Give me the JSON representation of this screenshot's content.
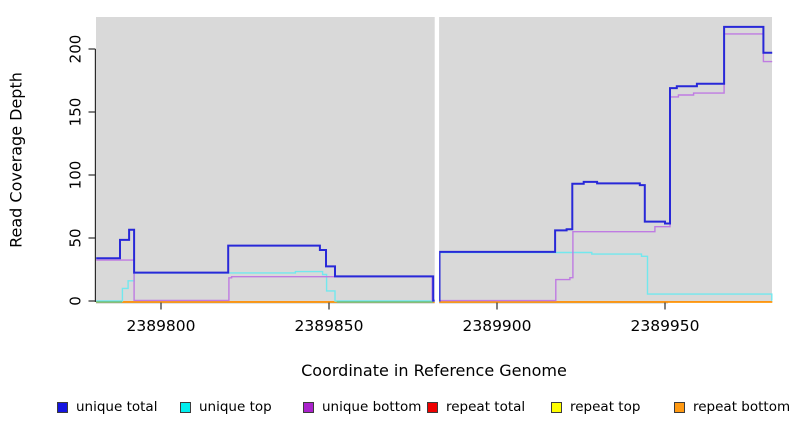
{
  "chart_data": {
    "type": "line",
    "subtype": "step-coverage-plot",
    "title": "",
    "xlabel": "Coordinate in Reference Genome",
    "ylabel": "Read Coverage Depth",
    "x_ticks": [
      2389800,
      2389850,
      2389900,
      2389950
    ],
    "y_ticks": [
      0,
      50,
      100,
      150,
      200
    ],
    "xlim": [
      2389780.7,
      2389981.9
    ],
    "ylim": [
      0,
      225
    ],
    "grid": false,
    "plot_background": "#d9d9d9",
    "figure_background": "#ffffff",
    "legend_position": "bottom",
    "no_data_gap": {
      "x_start": 2389881.45,
      "x_end": 2389882.75
    },
    "series": [
      {
        "name": "unique total",
        "color": "#2828d8",
        "width": 2,
        "points": [
          [
            2389780.7,
            34
          ],
          [
            2389787.8,
            48.5
          ],
          [
            2389790.5,
            56.5
          ],
          [
            2389792,
            22.5
          ],
          [
            2389820,
            44
          ],
          [
            2389847.3,
            40.5
          ],
          [
            2389849.1,
            27.5
          ],
          [
            2389851.8,
            19.5
          ],
          [
            2389881,
            0.3
          ],
          [
            2389882.9,
            39
          ],
          [
            2389917.3,
            56
          ],
          [
            2389920.7,
            57
          ],
          [
            2389922.4,
            93
          ],
          [
            2389925.8,
            94.5
          ],
          [
            2389929.8,
            93.3
          ],
          [
            2389942.5,
            92
          ],
          [
            2389944,
            63
          ],
          [
            2389950,
            61.5
          ],
          [
            2389951.5,
            169
          ],
          [
            2389953.5,
            170.5
          ],
          [
            2389959.5,
            172.5
          ],
          [
            2389967.6,
            217.5
          ],
          [
            2389979.3,
            197
          ]
        ],
        "x_end": 2389981.9
      },
      {
        "name": "unique top",
        "color": "#72e8ee",
        "width": 1.4,
        "points": [
          [
            2389780.7,
            0
          ],
          [
            2389788.5,
            10
          ],
          [
            2389790.2,
            16
          ],
          [
            2389792,
            22.3
          ],
          [
            2389820.5,
            22.3
          ],
          [
            2389840,
            23.3
          ],
          [
            2389848.1,
            21
          ],
          [
            2389849.3,
            8
          ],
          [
            2389851.8,
            0
          ],
          [
            2389882.9,
            38.5
          ],
          [
            2389928.2,
            37.2
          ],
          [
            2389943,
            35.5
          ],
          [
            2389944.8,
            5.5
          ],
          [
            2389981.8,
            0.5
          ]
        ],
        "x_end": 2389981.9
      },
      {
        "name": "unique bottom",
        "color": "#bf7be2",
        "width": 1.4,
        "points": [
          [
            2389780.7,
            32.5
          ],
          [
            2389792,
            0.5
          ],
          [
            2389820.2,
            18.4
          ],
          [
            2389821,
            19.3
          ],
          [
            2389880.7,
            0.3
          ],
          [
            2389917.5,
            17
          ],
          [
            2389921.7,
            18.5
          ],
          [
            2389922.6,
            55
          ],
          [
            2389947,
            59
          ],
          [
            2389951.5,
            162
          ],
          [
            2389954,
            163.5
          ],
          [
            2389958.5,
            165
          ],
          [
            2389967.6,
            212
          ],
          [
            2389979.3,
            190
          ]
        ],
        "x_end": 2389981.9
      },
      {
        "name": "repeat total",
        "color": "#ee2222",
        "width": 1.4,
        "points": [
          [
            2389780.7,
            0
          ]
        ],
        "x_end": 2389981.9
      },
      {
        "name": "repeat top",
        "color": "#f5e626",
        "width": 1.4,
        "points": [
          [
            2389780.7,
            0
          ]
        ],
        "x_end": 2389981.9
      },
      {
        "name": "repeat bottom",
        "color": "#ff9912",
        "width": 1.6,
        "points": [
          [
            2389780.7,
            0
          ]
        ],
        "x_end": 2389981.9
      }
    ],
    "zero_overlap_segments": {
      "comment_color": "#6cc690",
      "ranges": [
        [
          2389780.7,
          2389788.4
        ],
        [
          2389852.3,
          2389880.9
        ]
      ]
    }
  },
  "legend": {
    "items": [
      {
        "label": "unique total",
        "color": "#1414e0"
      },
      {
        "label": "unique top",
        "color": "#00eeee"
      },
      {
        "label": "unique bottom",
        "color": "#aa22cc"
      },
      {
        "label": "repeat total",
        "color": "#ee0000"
      },
      {
        "label": "repeat top",
        "color": "#ffff00"
      },
      {
        "label": "repeat bottom",
        "color": "#ff9912"
      }
    ]
  }
}
